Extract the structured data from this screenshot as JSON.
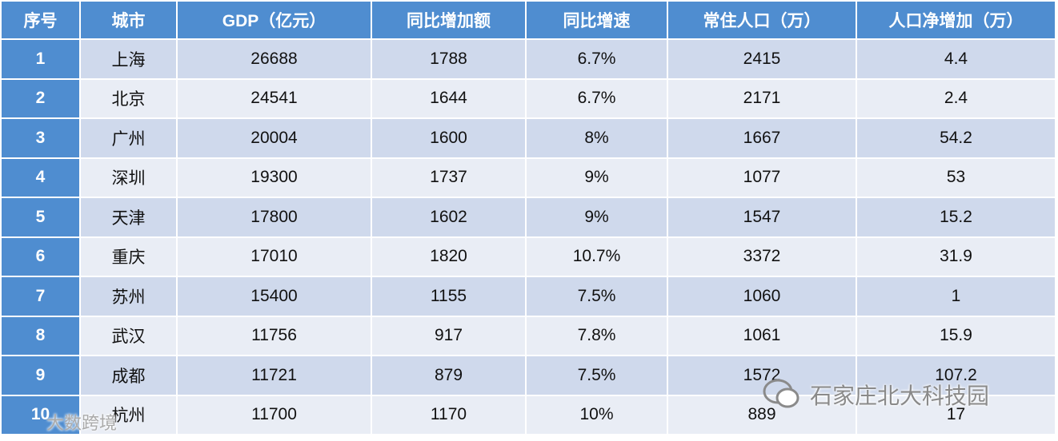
{
  "table": {
    "header": [
      "序号",
      "城市",
      "GDP（亿元）",
      "同比增加额",
      "同比增速",
      "常住人口（万）",
      "人口净增加（万）"
    ],
    "rows": [
      [
        "1",
        "上海",
        "26688",
        "1788",
        "6.7%",
        "2415",
        "4.4"
      ],
      [
        "2",
        "北京",
        "24541",
        "1644",
        "6.7%",
        "2171",
        "2.4"
      ],
      [
        "3",
        "广州",
        "20004",
        "1600",
        "8%",
        "1667",
        "54.2"
      ],
      [
        "4",
        "深圳",
        "19300",
        "1737",
        "9%",
        "1077",
        "53"
      ],
      [
        "5",
        "天津",
        "17800",
        "1602",
        "9%",
        "1547",
        "15.2"
      ],
      [
        "6",
        "重庆",
        "17010",
        "1820",
        "10.7%",
        "3372",
        "31.9"
      ],
      [
        "7",
        "苏州",
        "15400",
        "1155",
        "7.5%",
        "1060",
        "1"
      ],
      [
        "8",
        "武汉",
        "11756",
        "917",
        "7.8%",
        "1061",
        "15.9"
      ],
      [
        "9",
        "成都",
        "11721",
        "879",
        "7.5%",
        "1572",
        "107.2"
      ],
      [
        "10",
        "杭州",
        "11700",
        "1170",
        "10%",
        "889",
        "17"
      ]
    ]
  },
  "watermarks": [
    "石家庄北大科技园",
    "大数跨境"
  ]
}
